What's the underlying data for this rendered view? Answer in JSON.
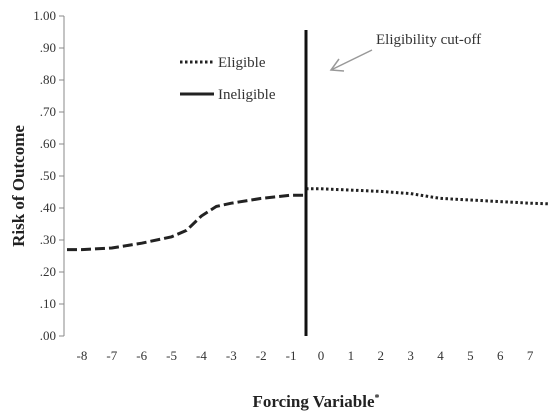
{
  "chart_data": {
    "type": "line",
    "title": "",
    "xlabel": "Forcing Variable",
    "xlabel_superscript": "*",
    "ylabel": "Risk of Outcome",
    "xlim": [
      -8.6,
      7.6
    ],
    "ylim": [
      0,
      1.0
    ],
    "x_ticks": [
      -8,
      -7,
      -6,
      -5,
      -4,
      -3,
      -2,
      -1,
      0,
      1,
      2,
      3,
      4,
      5,
      6,
      7
    ],
    "x_tick_labels": [
      "-8",
      "-7",
      "-6",
      "-5",
      "-4",
      "-3",
      "-2",
      "-1",
      "0",
      "1",
      "2",
      "3",
      "4",
      "5",
      "6",
      "7"
    ],
    "y_ticks": [
      0,
      0.1,
      0.2,
      0.3,
      0.4,
      0.5,
      0.6,
      0.7,
      0.8,
      0.9,
      1.0
    ],
    "y_tick_labels": [
      ".00",
      ".10",
      ".20",
      ".30",
      ".40",
      ".50",
      ".60",
      ".70",
      ".80",
      ".90",
      "1.00"
    ],
    "grid": false,
    "legend_position": "top-left",
    "series": [
      {
        "name": "Eligible",
        "style": "dotted",
        "color": "#222222",
        "x": [
          -0.5,
          0,
          1,
          2,
          3,
          4,
          5,
          6,
          7,
          7.6
        ],
        "y": [
          0.46,
          0.46,
          0.456,
          0.452,
          0.445,
          0.43,
          0.425,
          0.42,
          0.415,
          0.413
        ]
      },
      {
        "name": "Ineligible",
        "style": "dashed",
        "color": "#222222",
        "x": [
          -8.5,
          -8,
          -7,
          -6,
          -5,
          -4.5,
          -4,
          -3.5,
          -3,
          -2,
          -1,
          -0.5
        ],
        "y": [
          0.27,
          0.27,
          0.275,
          0.29,
          0.31,
          0.33,
          0.375,
          0.405,
          0.415,
          0.43,
          0.44,
          0.44
        ]
      }
    ],
    "cutoff": {
      "x": -0.5,
      "label": "Eligibility cut-off"
    }
  }
}
